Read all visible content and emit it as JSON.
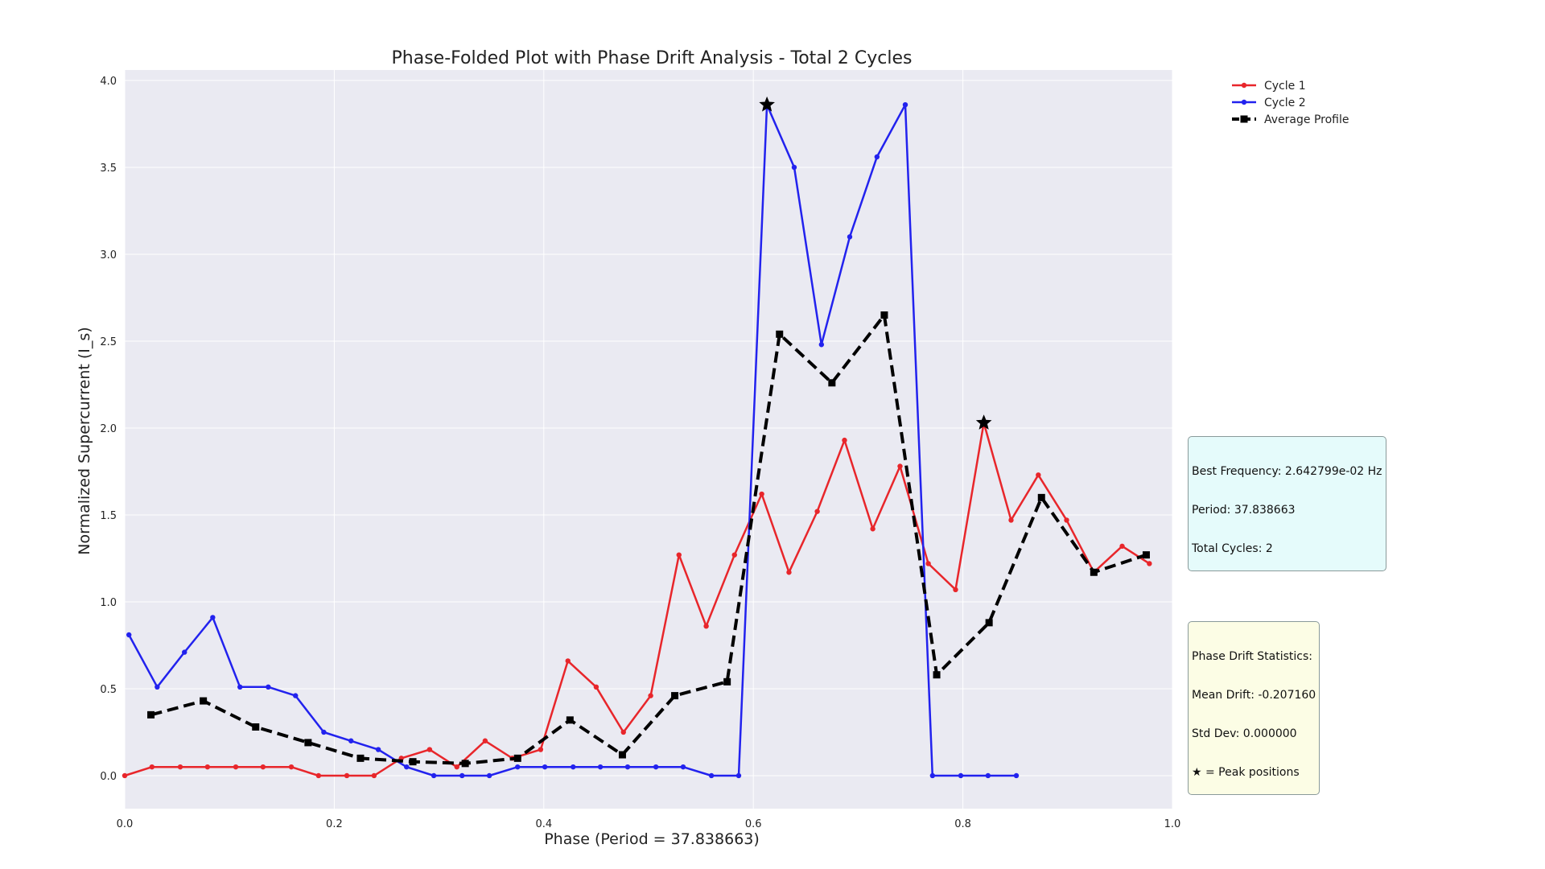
{
  "chart_data": {
    "type": "line",
    "title": "Phase-Folded Plot with Phase Drift Analysis - Total 2 Cycles",
    "xlabel": "Phase (Period = 37.838663)",
    "ylabel": "Normalized Supercurrent (I_s)",
    "xlim": [
      0.0,
      1.0
    ],
    "ylim": [
      -0.19,
      4.06
    ],
    "x_ticks": [
      "0.0",
      "0.2",
      "0.4",
      "0.6",
      "0.8",
      "1.0"
    ],
    "y_ticks": [
      "0.0",
      "0.5",
      "1.0",
      "1.5",
      "2.0",
      "2.5",
      "3.0",
      "3.5",
      "4.0"
    ],
    "grid": true,
    "legend_position": "top-right (outside plot)",
    "series": [
      {
        "name": "Cycle 1",
        "color": "#e8262b",
        "marker": "dot",
        "x": [
          0.0,
          0.026,
          0.053,
          0.079,
          0.106,
          0.132,
          0.159,
          0.185,
          0.212,
          0.238,
          0.264,
          0.291,
          0.317,
          0.344,
          0.37,
          0.397,
          0.423,
          0.45,
          0.476,
          0.502,
          0.529,
          0.555,
          0.582,
          0.608,
          0.634,
          0.661,
          0.687,
          0.714,
          0.74,
          0.767,
          0.793,
          0.82,
          0.846,
          0.872,
          0.899,
          0.925,
          0.952,
          0.978
        ],
        "y": [
          0.0,
          0.05,
          0.05,
          0.05,
          0.05,
          0.05,
          0.05,
          0.0,
          0.0,
          0.0,
          0.1,
          0.15,
          0.05,
          0.2,
          0.1,
          0.15,
          0.66,
          0.51,
          0.25,
          0.46,
          1.27,
          0.86,
          1.27,
          1.62,
          1.17,
          1.52,
          1.93,
          1.42,
          1.78,
          1.22,
          1.07,
          2.03,
          1.47,
          1.73,
          1.47,
          1.17,
          1.32,
          1.22
        ]
      },
      {
        "name": "Cycle 2",
        "color": "#2222ee",
        "marker": "dot",
        "x": [
          0.004,
          0.031,
          0.057,
          0.084,
          0.11,
          0.137,
          0.163,
          0.19,
          0.216,
          0.242,
          0.269,
          0.295,
          0.322,
          0.348,
          0.375,
          0.401,
          0.428,
          0.454,
          0.48,
          0.507,
          0.533,
          0.56,
          0.586,
          0.613,
          0.639,
          0.665,
          0.692,
          0.718,
          0.745,
          0.771,
          0.798,
          0.824,
          0.851
        ],
        "y": [
          0.81,
          0.51,
          0.71,
          0.91,
          0.51,
          0.51,
          0.46,
          0.25,
          0.2,
          0.15,
          0.05,
          0.0,
          0.0,
          0.0,
          0.05,
          0.05,
          0.05,
          0.05,
          0.05,
          0.05,
          0.05,
          0.0,
          0.0,
          3.86,
          3.5,
          2.48,
          3.1,
          3.56,
          3.86,
          0.0,
          0.0,
          0.0,
          0.0
        ]
      },
      {
        "name": "Average Profile",
        "color": "#000000",
        "marker": "square",
        "dashed": true,
        "x": [
          0.025,
          0.075,
          0.125,
          0.175,
          0.225,
          0.275,
          0.325,
          0.375,
          0.425,
          0.475,
          0.525,
          0.575,
          0.625,
          0.675,
          0.725,
          0.775,
          0.825,
          0.875,
          0.925,
          0.975
        ],
        "y": [
          0.35,
          0.43,
          0.28,
          0.19,
          0.1,
          0.08,
          0.07,
          0.1,
          0.32,
          0.12,
          0.46,
          0.54,
          2.54,
          2.26,
          2.65,
          0.58,
          0.88,
          1.6,
          1.17,
          1.27
        ]
      }
    ],
    "peaks": [
      {
        "x": 0.613,
        "y": 3.86
      },
      {
        "x": 0.82,
        "y": 2.03
      }
    ],
    "info_frequency": [
      "Best Frequency: 2.642799e-02 Hz",
      "Period: 37.838663",
      "Total Cycles: 2"
    ],
    "info_drift": [
      "Phase Drift Statistics:",
      "Mean Drift: -0.207160",
      "Std Dev: 0.000000",
      "★ = Peak positions"
    ]
  }
}
